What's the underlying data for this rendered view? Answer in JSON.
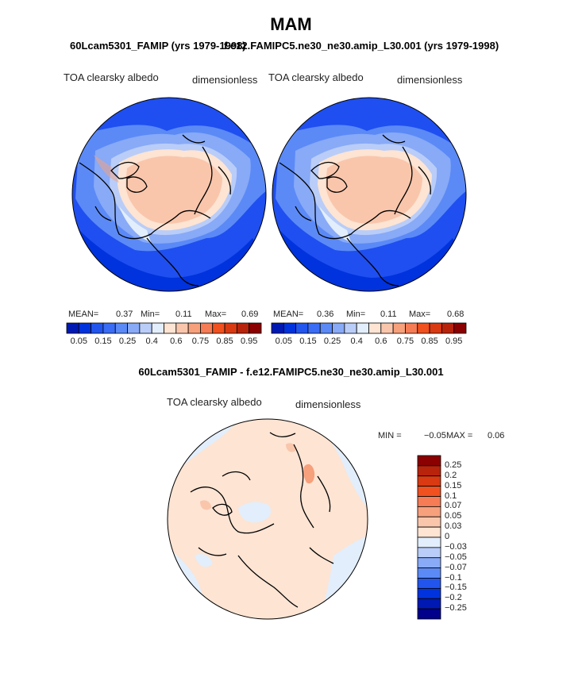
{
  "page": {
    "season_title": "MAM",
    "left_case_title": "60Lcam5301_FAMIP (yrs 1979-1998)",
    "right_case_title": "f.e12.FAMIPC5.ne30_ne30.amip_L30.001 (yrs 1979-1998)",
    "diff_title": "60Lcam5301_FAMIP - f.e12.FAMIPC5.ne30_ne30.amip_L30.001"
  },
  "colors": {
    "albedo_levels": [
      "#00008b",
      "#0019b3",
      "#0033dd",
      "#2255ee",
      "#3a6cf5",
      "#5b8af7",
      "#88aaf7",
      "#b9cdf8",
      "#e2eefb",
      "#fde4d3",
      "#f9c6ac",
      "#f7a07c",
      "#f57c55",
      "#f1501f",
      "#d93a12",
      "#b8230c",
      "#8b0000"
    ],
    "diff_levels": [
      "#00008b",
      "#0019b3",
      "#0033dd",
      "#2255ee",
      "#5b8af7",
      "#88aaf7",
      "#b9cdf8",
      "#e2eefb",
      "#fde4d3",
      "#f9c6ac",
      "#f7a07c",
      "#f57c55",
      "#f1501f",
      "#d93a12",
      "#b8230c",
      "#8b0000"
    ]
  },
  "chart_data": [
    {
      "type": "heatmap",
      "projection": "north polar stereographic",
      "title": "60Lcam5301_FAMIP (yrs 1979-1998)",
      "left_string": "TOA clearsky albedo",
      "right_string": "dimensionless",
      "stats": {
        "mean_label": "MEAN=",
        "mean": "0.37",
        "min_label": "Min=",
        "min": "0.11",
        "max_label": "Max=",
        "max": "0.69"
      },
      "colorbar_ticks": [
        "0.05",
        "0.15",
        "0.25",
        "0.4",
        "0.6",
        "0.75",
        "0.85",
        "0.95"
      ],
      "colorbar_boxes": 16
    },
    {
      "type": "heatmap",
      "projection": "north polar stereographic",
      "title": "f.e12.FAMIPC5.ne30_ne30.amip_L30.001 (yrs 1979-1998)",
      "left_string": "TOA clearsky albedo",
      "right_string": "dimensionless",
      "stats": {
        "mean_label": "MEAN=",
        "mean": "0.36",
        "min_label": "Min=",
        "min": "0.11",
        "max_label": "Max=",
        "max": "0.68"
      },
      "colorbar_ticks": [
        "0.05",
        "0.15",
        "0.25",
        "0.4",
        "0.6",
        "0.75",
        "0.85",
        "0.95"
      ],
      "colorbar_boxes": 16
    },
    {
      "type": "heatmap",
      "projection": "north polar stereographic",
      "title": "60Lcam5301_FAMIP - f.e12.FAMIPC5.ne30_ne30.amip_L30.001",
      "left_string": "TOA clearsky albedo",
      "right_string": "dimensionless",
      "stats": {
        "min_label": "MIN =",
        "min": "−0.05",
        "max_label": "MAX =",
        "max": "0.06"
      },
      "colorbar_ticks": [
        "0.25",
        "0.2",
        "0.15",
        "0.1",
        "0.07",
        "0.05",
        "0.03",
        "0",
        "−0.03",
        "−0.05",
        "−0.07",
        "−0.1",
        "−0.15",
        "−0.2",
        "−0.25"
      ]
    }
  ]
}
